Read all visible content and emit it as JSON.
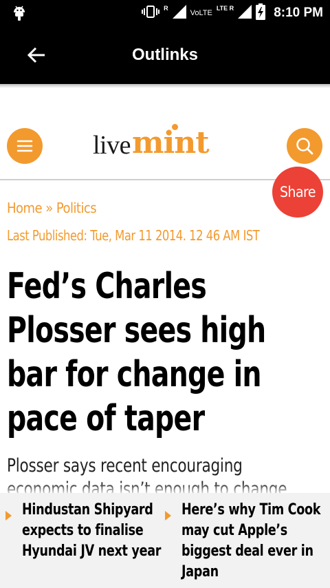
{
  "status_bar": {
    "time": "8:10 PM",
    "volte": "VoLTE",
    "roaming_tag": "R",
    "lte_tag": "LTE R",
    "icons": [
      "android-debug-icon",
      "vibrate-icon",
      "signal-icon",
      "signal-lte-icon",
      "battery-charging-icon"
    ]
  },
  "app_bar": {
    "title": "Outlinks",
    "back_icon": "arrow-left-icon"
  },
  "site": {
    "logo_live": "live",
    "logo_mint": "mint",
    "brand_color": "#f39a2e",
    "menu_icon": "hamburger-icon",
    "search_icon": "search-icon"
  },
  "share": {
    "label": "Share",
    "color": "#ec4136"
  },
  "article": {
    "breadcrumb_home": "Home",
    "breadcrumb_sep": "»",
    "breadcrumb_section": "Politics",
    "published": "Last Published: Tue, Mar 11 2014. 12 46 AM IST",
    "headline_lines": [
      "Fed’s Charles",
      "Plosser sees high",
      "bar for change in",
      "pace of taper"
    ],
    "summary_lines": [
      "Plosser says recent encouraging",
      "economic data isn’t enough to change"
    ]
  },
  "recommendations": [
    {
      "lines": [
        "Hindustan Shipyard",
        "expects to finalise",
        "Hyundai JV next year"
      ]
    },
    {
      "lines": [
        "Here’s why Tim Cook",
        "may cut Apple’s",
        "biggest deal ever in",
        "Japan"
      ]
    }
  ]
}
